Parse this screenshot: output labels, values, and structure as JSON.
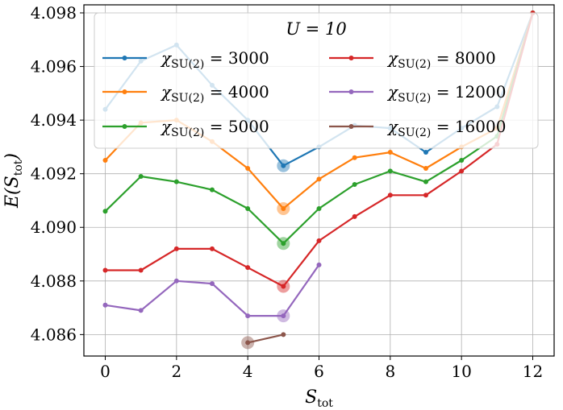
{
  "chart_data": {
    "type": "line",
    "title": "",
    "xlabel": "S_tot",
    "ylabel": "E(S_tot)",
    "xlim": [
      -0.6,
      12.6
    ],
    "ylim": [
      4.0852,
      4.0983
    ],
    "grid": true,
    "xticks": [
      0,
      2,
      4,
      6,
      8,
      10,
      12
    ],
    "yticks": [
      4.086,
      4.088,
      4.09,
      4.092,
      4.094,
      4.096,
      4.098
    ],
    "xtick_labels": [
      "0",
      "2",
      "4",
      "6",
      "8",
      "10",
      "12"
    ],
    "ytick_labels": [
      "4.086",
      "4.088",
      "4.090",
      "4.092",
      "4.094",
      "4.096",
      "4.098"
    ],
    "legend": {
      "title": "U = 10",
      "placement": "top",
      "columns": 2
    },
    "series": [
      {
        "name": "χSU(2) = 3000",
        "color": "#1f77b4",
        "x": [
          0,
          1,
          2,
          3,
          4,
          5,
          6,
          7,
          8,
          9,
          10,
          11,
          12
        ],
        "values": [
          4.0944,
          4.0962,
          4.0968,
          4.0953,
          4.094,
          4.0923,
          4.093,
          4.0938,
          4.0937,
          4.0928,
          4.0937,
          4.0945,
          4.098
        ],
        "marked_x": 5
      },
      {
        "name": "χSU(2) = 4000",
        "color": "#ff7f0e",
        "x": [
          0,
          1,
          2,
          3,
          4,
          5,
          6,
          7,
          8,
          9,
          10,
          11,
          12
        ],
        "values": [
          4.0925,
          4.0939,
          4.094,
          4.0932,
          4.0922,
          4.0907,
          4.0918,
          4.0926,
          4.0928,
          4.0922,
          4.093,
          4.0937,
          4.098
        ],
        "marked_x": 5
      },
      {
        "name": "χSU(2) = 5000",
        "color": "#2ca02c",
        "x": [
          0,
          1,
          2,
          3,
          4,
          5,
          6,
          7,
          8,
          9,
          10,
          11,
          12
        ],
        "values": [
          4.0906,
          4.0919,
          4.0917,
          4.0914,
          4.0907,
          4.0894,
          4.0907,
          4.0916,
          4.0921,
          4.0917,
          4.0925,
          4.0934,
          4.098
        ],
        "marked_x": 5
      },
      {
        "name": "χSU(2) = 8000",
        "color": "#d62728",
        "x": [
          0,
          1,
          2,
          3,
          4,
          5,
          6,
          7,
          8,
          9,
          10,
          11,
          12
        ],
        "values": [
          4.0884,
          4.0884,
          4.0892,
          4.0892,
          4.0885,
          4.0878,
          4.0895,
          4.0904,
          4.0912,
          4.0912,
          4.0921,
          4.0931,
          4.098
        ],
        "marked_x": 5
      },
      {
        "name": "χSU(2) = 12000",
        "color": "#9467bd",
        "x": [
          0,
          1,
          2,
          3,
          4,
          5,
          6
        ],
        "values": [
          4.0871,
          4.0869,
          4.088,
          4.0879,
          4.0867,
          4.0867,
          4.0886
        ],
        "marked_x": 5
      },
      {
        "name": "χSU(2) = 16000",
        "color": "#8c564b",
        "x": [
          4,
          5
        ],
        "values": [
          4.0857,
          4.086
        ],
        "marked_x": 4
      }
    ]
  }
}
